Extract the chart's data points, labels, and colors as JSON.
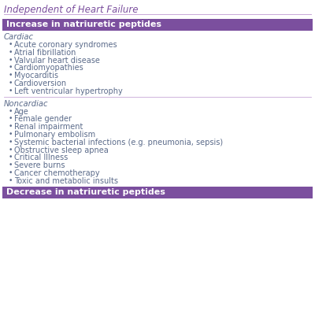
{
  "title_partial": "Independent of Heart Failure",
  "title_color": "#7B4F9E",
  "title_fontsize": 8.5,
  "header_bg_color": "#7B4F9E",
  "header_text_color": "#FFFFFF",
  "header_fontsize": 8.0,
  "section_line_color": "#C8A8D8",
  "body_text_color": "#5B6B8A",
  "subheader_color": "#5B6B8A",
  "background_color": "#FFFFFF",
  "divider_line_color": "#C8A8D8",
  "sections": [
    {
      "header": "Increase in natriuretic peptides",
      "subsections": [
        {
          "name": "Cardiac",
          "items": [
            "Acute coronary syndromes",
            "Atrial fibrillation",
            "Valvular heart disease",
            "Cardiomyopathies",
            "Myocarditis",
            "Cardioversion",
            "Left ventricular hypertrophy"
          ]
        },
        {
          "name": "Noncardiac",
          "items": [
            "Age",
            "Female gender",
            "Renal impairment",
            "Pulmonary embolism",
            "Systemic bacterial infections (e.g. pneumonia, sepsis)",
            "Obstructive sleep apnea",
            "Critical Illness",
            "Severe burns",
            "Cancer chemotherapy",
            "Toxic and metabolic insults"
          ]
        }
      ]
    },
    {
      "header": "Decrease in natriuretic peptides",
      "subsections": []
    }
  ]
}
